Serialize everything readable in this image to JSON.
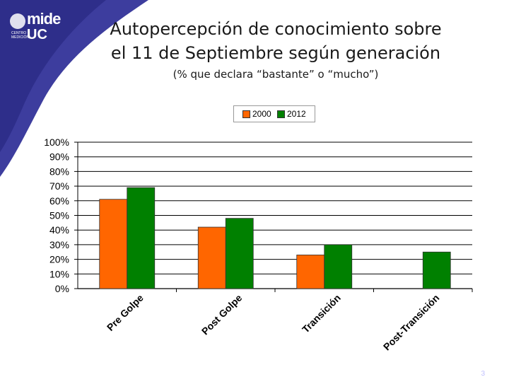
{
  "logo": {
    "line1": "mide",
    "line2": "UC",
    "line3": "CENTRO MEDICIÓN"
  },
  "title_line1": "Autopercepción de conocimiento sobre",
  "title_line2": "el 11 de Septiembre según generación",
  "subtitle": "(% que declara “bastante” o “mucho”)",
  "page_number": "3",
  "colors": {
    "series_2000": "#ff6600",
    "series_2012": "#008000",
    "decor": "#3d3d9e"
  },
  "chart_data": {
    "type": "bar",
    "title": "",
    "xlabel": "",
    "ylabel": "",
    "categories": [
      "Pre Golpe",
      "Post Golpe",
      "Transición",
      "Post-Transición"
    ],
    "series": [
      {
        "name": "2000",
        "values": [
          61,
          42,
          23,
          null
        ]
      },
      {
        "name": "2012",
        "values": [
          69,
          48,
          30,
          25
        ]
      }
    ],
    "ylim": [
      0,
      100
    ],
    "yticks": [
      "0%",
      "10%",
      "20%",
      "30%",
      "40%",
      "50%",
      "60%",
      "70%",
      "80%",
      "90%",
      "100%"
    ],
    "grid": true,
    "legend": "top-center"
  }
}
